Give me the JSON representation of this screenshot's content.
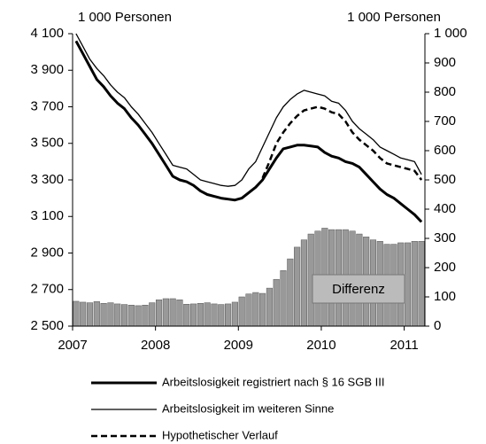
{
  "chart_data": {
    "type": "bar-line",
    "ylabel": "1 000 Personen",
    "y2label": "1 000 Personen",
    "annotation": "Differenz",
    "categories": [
      "2007",
      null,
      null,
      null,
      null,
      null,
      null,
      null,
      null,
      null,
      null,
      null,
      "2008",
      null,
      null,
      null,
      null,
      null,
      null,
      null,
      null,
      null,
      null,
      null,
      "2009",
      null,
      null,
      null,
      null,
      null,
      null,
      null,
      null,
      null,
      null,
      null,
      "2010",
      null,
      null,
      null,
      null,
      null,
      null,
      null,
      null,
      null,
      null,
      null,
      "2011",
      null,
      null
    ],
    "ylim": [
      2500,
      4100
    ],
    "yticks": [
      {
        "value": 2500,
        "label": "2 500"
      },
      {
        "value": 2700,
        "label": "2 700"
      },
      {
        "value": 2900,
        "label": "2 900"
      },
      {
        "value": 3100,
        "label": "3 100"
      },
      {
        "value": 3300,
        "label": "3 300"
      },
      {
        "value": 3500,
        "label": "3 500"
      },
      {
        "value": 3700,
        "label": "3 700"
      },
      {
        "value": 3900,
        "label": "3 900"
      },
      {
        "value": 4100,
        "label": "4 100"
      }
    ],
    "y2lim": [
      0,
      1000
    ],
    "y2ticks": [
      0,
      100,
      200,
      300,
      400,
      500,
      600,
      700,
      800,
      900,
      {
        "value": 1000,
        "label": "1 000"
      }
    ],
    "series": [
      {
        "name": "Arbeitslosigkeit registriert nach § 16 SGB III",
        "type": "line",
        "color": "#000000",
        "linewidth": 3,
        "linestyle": "solid",
        "values": [
          4060,
          3990,
          3920,
          3850,
          3810,
          3760,
          3720,
          3690,
          3640,
          3600,
          3550,
          3500,
          3440,
          3380,
          3320,
          3300,
          3290,
          3270,
          3240,
          3220,
          3210,
          3200,
          3195,
          3190,
          3200,
          3230,
          3260,
          3300,
          3360,
          3420,
          3470,
          3480,
          3490,
          3490,
          3485,
          3480,
          3450,
          3430,
          3420,
          3400,
          3390,
          3370,
          3330,
          3290,
          3250,
          3220,
          3200,
          3170,
          3140,
          3110,
          3070
        ]
      },
      {
        "name": "Arbeitslosigkeit im weiteren Sinne",
        "type": "line",
        "color": "#000000",
        "linewidth": 1.3,
        "linestyle": "solid",
        "values": [
          4100,
          4030,
          3960,
          3910,
          3870,
          3820,
          3780,
          3750,
          3700,
          3660,
          3610,
          3560,
          3500,
          3440,
          3380,
          3370,
          3360,
          3330,
          3300,
          3290,
          3280,
          3270,
          3265,
          3270,
          3300,
          3360,
          3400,
          3480,
          3560,
          3640,
          3700,
          3740,
          3770,
          3790,
          3780,
          3770,
          3760,
          3730,
          3720,
          3680,
          3620,
          3580,
          3550,
          3520,
          3480,
          3460,
          3440,
          3420,
          3410,
          3400,
          3330
        ]
      },
      {
        "name": "Hypothetischer Verlauf",
        "type": "line",
        "color": "#000000",
        "linewidth": 2.5,
        "linestyle": "dashed",
        "values": [
          null,
          null,
          null,
          null,
          null,
          null,
          null,
          null,
          null,
          null,
          null,
          null,
          null,
          null,
          null,
          null,
          null,
          null,
          null,
          null,
          null,
          null,
          null,
          null,
          null,
          null,
          null,
          3310,
          3400,
          3500,
          3560,
          3610,
          3650,
          3680,
          3690,
          3700,
          3690,
          3670,
          3660,
          3620,
          3560,
          3520,
          3490,
          3460,
          3420,
          3390,
          3380,
          3370,
          3360,
          3350,
          3300
        ]
      },
      {
        "type": "bar",
        "axis": "y2",
        "color": "#999999",
        "values": [
          85,
          82,
          80,
          84,
          78,
          80,
          76,
          74,
          72,
          70,
          72,
          80,
          90,
          94,
          94,
          90,
          75,
          76,
          78,
          80,
          76,
          74,
          76,
          82,
          100,
          110,
          115,
          112,
          130,
          160,
          190,
          230,
          270,
          295,
          315,
          325,
          335,
          330,
          330,
          330,
          325,
          315,
          305,
          295,
          290,
          280,
          280,
          285,
          285,
          290,
          290
        ]
      }
    ]
  }
}
